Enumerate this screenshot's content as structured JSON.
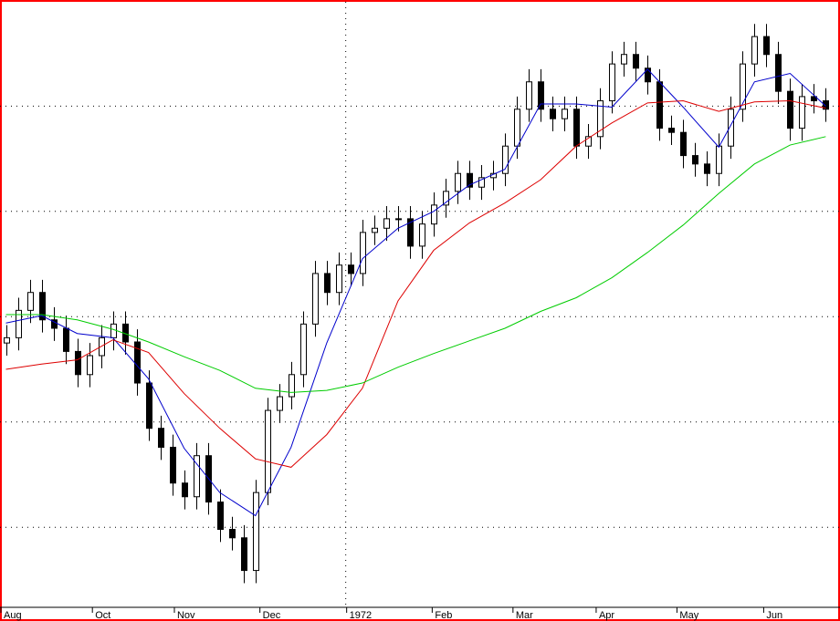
{
  "chart_data": {
    "type": "candlestick",
    "x": [
      0,
      1,
      2,
      3,
      4,
      5,
      6,
      7,
      8,
      9,
      10,
      11,
      12,
      13,
      14,
      15,
      16,
      17,
      18,
      19,
      20,
      21,
      22,
      23,
      24,
      25,
      26,
      27,
      28,
      29,
      30,
      31,
      32,
      33,
      34,
      35,
      36,
      37,
      38,
      39,
      40,
      41,
      42,
      43,
      44,
      45,
      46,
      47,
      48,
      49,
      50,
      51,
      52,
      53,
      54,
      55,
      56,
      57,
      58,
      59,
      60,
      61,
      62,
      63,
      64,
      65,
      66,
      67,
      68,
      69
    ],
    "open": [
      275,
      280,
      306,
      323,
      297,
      289,
      267,
      245,
      263,
      280,
      293,
      276,
      237,
      194,
      176,
      142,
      129,
      168,
      124,
      98,
      90,
      59,
      133,
      211,
      224,
      245,
      293,
      341,
      323,
      349,
      341,
      380,
      384,
      393,
      393,
      367,
      388,
      406,
      419,
      436,
      423,
      432,
      436,
      462,
      497,
      523,
      497,
      488,
      497,
      462,
      471,
      505,
      540,
      549,
      536,
      523,
      479,
      475,
      453,
      445,
      436,
      462,
      497,
      540,
      566,
      549,
      514,
      479,
      509,
      505
    ],
    "high": [
      292,
      318,
      335,
      335,
      309,
      301,
      279,
      275,
      292,
      305,
      305,
      288,
      249,
      206,
      188,
      154,
      180,
      180,
      136,
      110,
      102,
      145,
      223,
      236,
      257,
      305,
      353,
      353,
      361,
      361,
      392,
      396,
      405,
      405,
      405,
      400,
      418,
      431,
      448,
      448,
      444,
      448,
      474,
      509,
      535,
      535,
      509,
      509,
      509,
      483,
      517,
      552,
      561,
      561,
      548,
      535,
      491,
      487,
      465,
      457,
      474,
      509,
      552,
      578,
      578,
      561,
      526,
      521,
      521,
      517
    ],
    "low": [
      263,
      268,
      294,
      285,
      277,
      255,
      233,
      233,
      251,
      268,
      264,
      225,
      182,
      164,
      130,
      117,
      117,
      112,
      86,
      78,
      47,
      47,
      121,
      199,
      212,
      233,
      281,
      311,
      311,
      329,
      329,
      368,
      372,
      381,
      355,
      355,
      376,
      394,
      407,
      411,
      411,
      420,
      424,
      450,
      485,
      485,
      476,
      476,
      450,
      450,
      459,
      493,
      528,
      524,
      511,
      467,
      463,
      441,
      433,
      424,
      424,
      450,
      485,
      528,
      537,
      502,
      467,
      467,
      493,
      485
    ],
    "close": [
      280,
      306,
      323,
      297,
      289,
      267,
      245,
      263,
      280,
      293,
      276,
      237,
      194,
      176,
      142,
      129,
      168,
      124,
      98,
      90,
      59,
      133,
      211,
      224,
      245,
      293,
      341,
      323,
      349,
      341,
      380,
      384,
      393,
      393,
      367,
      388,
      406,
      419,
      436,
      423,
      432,
      436,
      462,
      497,
      523,
      497,
      488,
      497,
      462,
      471,
      505,
      540,
      549,
      536,
      523,
      479,
      475,
      453,
      445,
      436,
      462,
      497,
      540,
      566,
      549,
      514,
      479,
      509,
      505,
      497
    ],
    "up_color": "#ffffff",
    "down_color": "#000000",
    "series": [
      {
        "color": "#0000cc",
        "x": [
          0,
          3,
          6,
          9,
          12,
          15,
          18,
          21,
          24,
          27,
          30,
          33,
          36,
          39,
          42,
          45,
          48,
          51,
          54,
          57,
          60,
          63,
          66,
          69
        ],
        "values": [
          294,
          301,
          284,
          280,
          241,
          175,
          133,
          111,
          176,
          275,
          355,
          384,
          400,
          425,
          440,
          502,
          502,
          499,
          535,
          499,
          461,
          523,
          531,
          500
        ]
      },
      {
        "color": "#dd0000",
        "x": [
          0,
          3,
          6,
          9,
          12,
          15,
          18,
          21,
          24,
          27,
          30,
          33,
          36,
          39,
          42,
          45,
          48,
          51,
          54,
          57,
          60,
          63,
          66,
          69
        ],
        "values": [
          250,
          255,
          259,
          278,
          266,
          227,
          194,
          165,
          157,
          188,
          232,
          315,
          363,
          389,
          408,
          430,
          462,
          484,
          503,
          505,
          495,
          504,
          505,
          498
        ]
      },
      {
        "color": "#00cc00",
        "x": [
          0,
          3,
          6,
          9,
          12,
          15,
          18,
          21,
          24,
          27,
          30,
          33,
          36,
          39,
          42,
          45,
          48,
          51,
          54,
          57,
          60,
          63,
          66,
          69
        ],
        "values": [
          302,
          302,
          297,
          288,
          276,
          262,
          249,
          232,
          228,
          230,
          237,
          252,
          265,
          277,
          289,
          305,
          318,
          337,
          361,
          387,
          417,
          445,
          463,
          471
        ]
      }
    ],
    "xlim": [
      -0.5,
      70.2
    ],
    "xticks": [
      {
        "value": -0.5,
        "label": "Aug"
      },
      {
        "value": 7.2,
        "label": "Oct"
      },
      {
        "value": 14.1,
        "label": "Nov"
      },
      {
        "value": 21.3,
        "label": "Dec"
      },
      {
        "value": 28.6,
        "label": "1972"
      },
      {
        "value": 35.8,
        "label": "Feb"
      },
      {
        "value": 42.6,
        "label": "Mar"
      },
      {
        "value": 49.6,
        "label": "Apr"
      },
      {
        "value": 56.4,
        "label": "May"
      },
      {
        "value": 63.7,
        "label": "Jun"
      }
    ],
    "xgrid": [
      4
    ],
    "ylim": [
      24,
      599
    ],
    "yticks": [
      100,
      200,
      300,
      400,
      500
    ],
    "grid": true
  }
}
